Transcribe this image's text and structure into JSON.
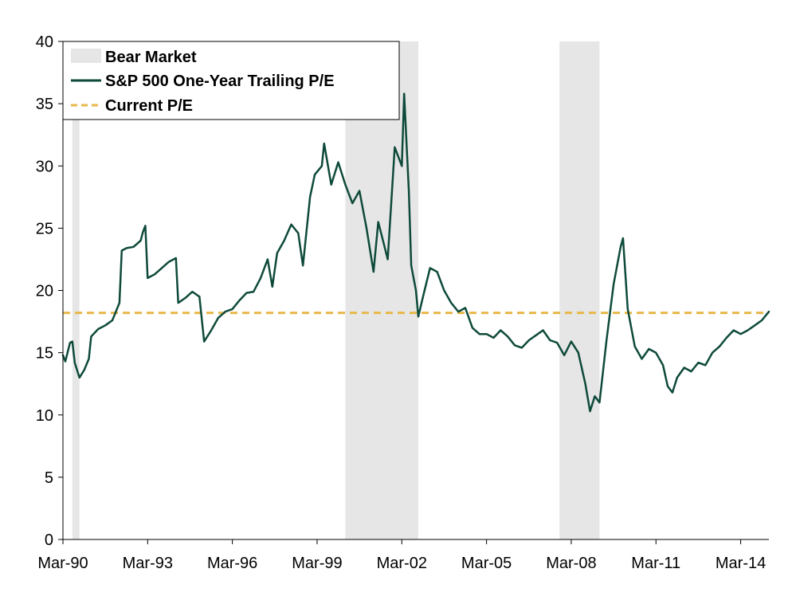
{
  "chart_data": {
    "type": "line",
    "x_axis": {
      "type": "date",
      "range": [
        "1990-03",
        "2015-03"
      ],
      "tick_labels": [
        "Mar-90",
        "Mar-93",
        "Mar-96",
        "Mar-99",
        "Mar-02",
        "Mar-05",
        "Mar-08",
        "Mar-11",
        "Mar-14"
      ],
      "tick_dates": [
        "1990-03",
        "1993-03",
        "1996-03",
        "1999-03",
        "2002-03",
        "2005-03",
        "2008-03",
        "2011-03",
        "2014-03"
      ]
    },
    "y_axis": {
      "range": [
        0,
        40
      ],
      "ticks": [
        0,
        5,
        10,
        15,
        20,
        25,
        30,
        35,
        40
      ]
    },
    "grid": false,
    "legend": {
      "placement": "top-left",
      "entries": [
        "Bear Market",
        "S&P 500 One-Year Trailing P/E",
        "Current P/E"
      ]
    },
    "bear_markets": [
      {
        "start": "1990-07",
        "end": "1990-10"
      },
      {
        "start": "2000-03",
        "end": "2002-10"
      },
      {
        "start": "2007-10",
        "end": "2009-03"
      }
    ],
    "current_pe": 18.2,
    "series": [
      {
        "name": "S&P 500 One-Year Trailing P/E",
        "color": "#0e4a3a",
        "points": [
          [
            "1990-03",
            14.8
          ],
          [
            "1990-04",
            14.3
          ],
          [
            "1990-06",
            15.8
          ],
          [
            "1990-07",
            15.9
          ],
          [
            "1990-08",
            14.2
          ],
          [
            "1990-10",
            13.0
          ],
          [
            "1990-12",
            13.6
          ],
          [
            "1991-02",
            14.5
          ],
          [
            "1991-03",
            16.3
          ],
          [
            "1991-06",
            16.9
          ],
          [
            "1991-09",
            17.2
          ],
          [
            "1991-12",
            17.6
          ],
          [
            "1992-03",
            19.0
          ],
          [
            "1992-04",
            23.2
          ],
          [
            "1992-06",
            23.4
          ],
          [
            "1992-09",
            23.5
          ],
          [
            "1992-12",
            24.0
          ],
          [
            "1993-01",
            24.7
          ],
          [
            "1993-02",
            25.2
          ],
          [
            "1993-03",
            21.0
          ],
          [
            "1993-06",
            21.3
          ],
          [
            "1993-09",
            21.8
          ],
          [
            "1993-12",
            22.3
          ],
          [
            "1994-03",
            22.6
          ],
          [
            "1994-04",
            19.0
          ],
          [
            "1994-07",
            19.4
          ],
          [
            "1994-10",
            19.9
          ],
          [
            "1995-01",
            19.5
          ],
          [
            "1995-03",
            15.9
          ],
          [
            "1995-06",
            16.8
          ],
          [
            "1995-09",
            17.8
          ],
          [
            "1995-12",
            18.3
          ],
          [
            "1996-03",
            18.5
          ],
          [
            "1996-06",
            19.2
          ],
          [
            "1996-09",
            19.8
          ],
          [
            "1996-12",
            19.9
          ],
          [
            "1997-03",
            21.0
          ],
          [
            "1997-06",
            22.5
          ],
          [
            "1997-08",
            20.3
          ],
          [
            "1997-10",
            23.0
          ],
          [
            "1998-01",
            24.0
          ],
          [
            "1998-04",
            25.3
          ],
          [
            "1998-07",
            24.6
          ],
          [
            "1998-09",
            22.0
          ],
          [
            "1998-12",
            27.5
          ],
          [
            "1999-02",
            29.3
          ],
          [
            "1999-05",
            30.0
          ],
          [
            "1999-06",
            31.8
          ],
          [
            "1999-09",
            28.5
          ],
          [
            "1999-12",
            30.3
          ],
          [
            "2000-03",
            28.5
          ],
          [
            "2000-06",
            27.0
          ],
          [
            "2000-09",
            28.0
          ],
          [
            "2000-12",
            25.0
          ],
          [
            "2001-03",
            21.5
          ],
          [
            "2001-05",
            25.5
          ],
          [
            "2001-07",
            24.0
          ],
          [
            "2001-09",
            22.5
          ],
          [
            "2001-12",
            31.5
          ],
          [
            "2002-03",
            30.0
          ],
          [
            "2002-04",
            35.8
          ],
          [
            "2002-06",
            28.0
          ],
          [
            "2002-07",
            22.0
          ],
          [
            "2002-09",
            20.0
          ],
          [
            "2002-10",
            17.9
          ],
          [
            "2002-12",
            19.5
          ],
          [
            "2003-03",
            21.8
          ],
          [
            "2003-06",
            21.5
          ],
          [
            "2003-09",
            20.0
          ],
          [
            "2003-12",
            19.0
          ],
          [
            "2004-03",
            18.3
          ],
          [
            "2004-06",
            18.6
          ],
          [
            "2004-09",
            17.0
          ],
          [
            "2004-12",
            16.5
          ],
          [
            "2005-03",
            16.5
          ],
          [
            "2005-06",
            16.2
          ],
          [
            "2005-09",
            16.8
          ],
          [
            "2005-12",
            16.3
          ],
          [
            "2006-03",
            15.6
          ],
          [
            "2006-06",
            15.4
          ],
          [
            "2006-09",
            16.0
          ],
          [
            "2006-12",
            16.4
          ],
          [
            "2007-03",
            16.8
          ],
          [
            "2007-06",
            16.0
          ],
          [
            "2007-09",
            15.8
          ],
          [
            "2007-12",
            14.8
          ],
          [
            "2008-03",
            15.9
          ],
          [
            "2008-06",
            15.0
          ],
          [
            "2008-09",
            12.5
          ],
          [
            "2008-11",
            10.3
          ],
          [
            "2009-01",
            11.5
          ],
          [
            "2009-03",
            11.0
          ],
          [
            "2009-06",
            16.0
          ],
          [
            "2009-09",
            20.5
          ],
          [
            "2009-12",
            23.5
          ],
          [
            "2010-01",
            24.2
          ],
          [
            "2010-03",
            18.5
          ],
          [
            "2010-06",
            15.5
          ],
          [
            "2010-09",
            14.5
          ],
          [
            "2010-12",
            15.3
          ],
          [
            "2011-03",
            15.0
          ],
          [
            "2011-06",
            14.0
          ],
          [
            "2011-08",
            12.3
          ],
          [
            "2011-10",
            11.8
          ],
          [
            "2011-12",
            13.0
          ],
          [
            "2012-03",
            13.8
          ],
          [
            "2012-06",
            13.5
          ],
          [
            "2012-09",
            14.2
          ],
          [
            "2012-12",
            14.0
          ],
          [
            "2013-03",
            15.0
          ],
          [
            "2013-06",
            15.5
          ],
          [
            "2013-09",
            16.2
          ],
          [
            "2013-12",
            16.8
          ],
          [
            "2014-03",
            16.5
          ],
          [
            "2014-06",
            16.8
          ],
          [
            "2014-09",
            17.2
          ],
          [
            "2014-12",
            17.6
          ],
          [
            "2015-03",
            18.3
          ]
        ]
      }
    ],
    "colors": {
      "bear_market": "#e6e6e6",
      "pe_line": "#0e4a3a",
      "current_pe": "#e8b84a",
      "axis": "#000000"
    }
  }
}
